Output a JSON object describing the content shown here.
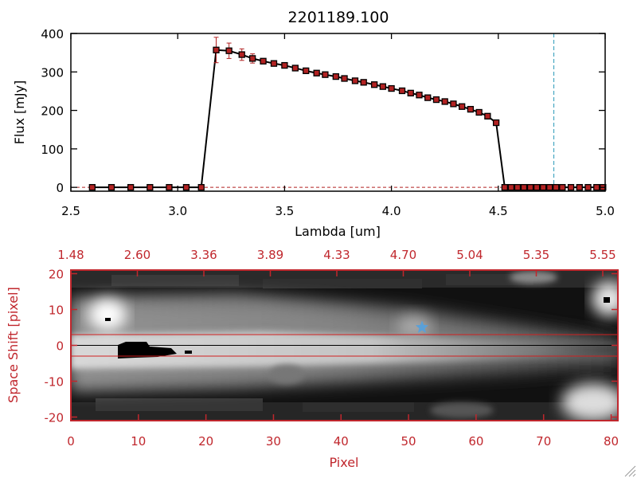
{
  "chart_data": [
    {
      "type": "line",
      "title": "2201189.100",
      "xlabel": "Lambda [um]",
      "ylabel": "Flux [mJy]",
      "xlim": [
        2.5,
        5.0
      ],
      "ylim": [
        -10,
        400
      ],
      "x_ticks": [
        "2.5",
        "3.0",
        "3.5",
        "4.0",
        "4.5",
        "5.0"
      ],
      "y_ticks": [
        "0",
        "100",
        "200",
        "300",
        "400"
      ],
      "reference_line_x": 4.76,
      "colors": {
        "line": "#000000",
        "marker": "#b22222",
        "error": "#b22222",
        "reference": "#2a9ab8"
      },
      "series": [
        {
          "name": "flux",
          "x": [
            2.6,
            2.69,
            2.78,
            2.87,
            2.96,
            3.04,
            3.11,
            3.18,
            3.24,
            3.3,
            3.35,
            3.4,
            3.45,
            3.5,
            3.55,
            3.6,
            3.65,
            3.69,
            3.74,
            3.78,
            3.83,
            3.87,
            3.92,
            3.96,
            4.0,
            4.05,
            4.09,
            4.13,
            4.17,
            4.21,
            4.25,
            4.29,
            4.33,
            4.37,
            4.41,
            4.45,
            4.49,
            4.53,
            4.56,
            4.59,
            4.62,
            4.65,
            4.68,
            4.71,
            4.74,
            4.77,
            4.8,
            4.84,
            4.88,
            4.92,
            4.96,
            4.99
          ],
          "y": [
            0,
            0,
            0,
            0,
            0,
            0,
            0,
            357,
            355,
            345,
            335,
            328,
            322,
            317,
            310,
            303,
            297,
            293,
            288,
            283,
            277,
            273,
            267,
            262,
            257,
            251,
            245,
            240,
            233,
            228,
            223,
            217,
            210,
            203,
            195,
            185,
            168,
            0,
            0,
            0,
            0,
            0,
            0,
            0,
            0,
            0,
            0,
            0,
            0,
            0,
            0,
            0
          ],
          "yerr": [
            0,
            0,
            0,
            0,
            0,
            0,
            0,
            33,
            20,
            15,
            12,
            3,
            3,
            3,
            3,
            3,
            3,
            3,
            3,
            3,
            3,
            3,
            3,
            3,
            3,
            3,
            3,
            3,
            3,
            3,
            3,
            3,
            3,
            3,
            3,
            3,
            3,
            0,
            0,
            0,
            0,
            0,
            0,
            0,
            0,
            0,
            0,
            0,
            0,
            0,
            0,
            0
          ]
        }
      ]
    },
    {
      "type": "heatmap",
      "xlabel": "Pixel",
      "ylabel": "Space Shift [pixel]",
      "xlim": [
        0,
        81
      ],
      "ylim": [
        -21,
        21
      ],
      "x_ticks": [
        "0",
        "10",
        "20",
        "30",
        "40",
        "50",
        "60",
        "70",
        "80"
      ],
      "y_ticks": [
        "20",
        "10",
        "0",
        "-10",
        "-20"
      ],
      "top_axis_ticks": [
        "1.48",
        "2.60",
        "3.36",
        "3.89",
        "4.33",
        "4.70",
        "5.04",
        "5.35",
        "5.55"
      ],
      "extraction_band": [
        -3,
        3
      ],
      "center_line": 0,
      "marker": {
        "pixel": 52,
        "shift": 5
      },
      "colors": {
        "axis": "#c0272d",
        "band": "#d02020",
        "marker": "#5aa0d8"
      }
    }
  ]
}
